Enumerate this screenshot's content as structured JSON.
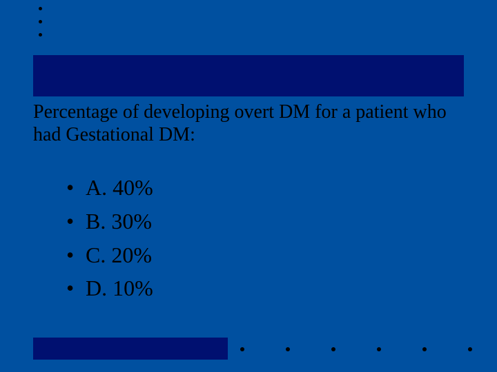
{
  "slide": {
    "background_color": "#0050a0",
    "accent_bar_color": "#001070",
    "dot_color": "#000000",
    "text_color": "#000000",
    "question_fontsize": 28,
    "answer_fontsize": 32,
    "question": "Percentage of developing overt DM for a patient who had Gestational DM:",
    "answers": [
      {
        "label": "A. 40%"
      },
      {
        "label": "B. 30%"
      },
      {
        "label": "C. 20%"
      },
      {
        "label": "D. 10%"
      }
    ],
    "top_dot_count": 3,
    "bottom_dot_count": 6
  }
}
